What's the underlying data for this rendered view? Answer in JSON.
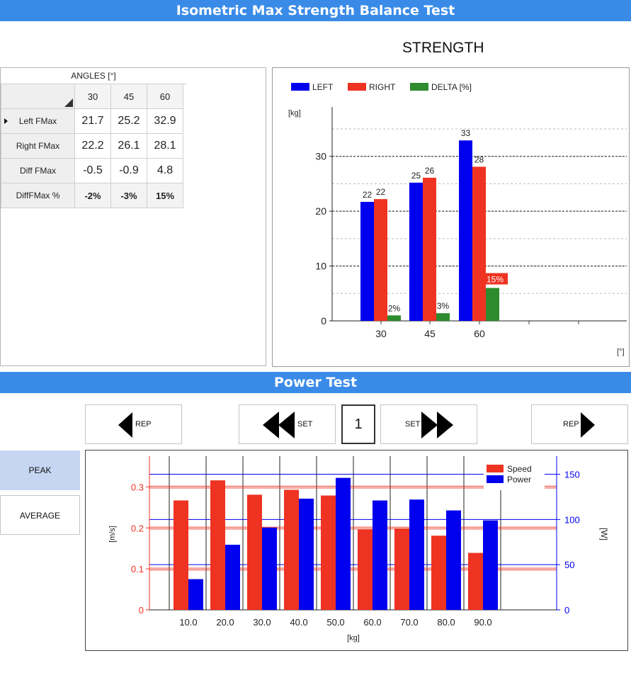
{
  "header": {
    "title": "Isometric Max Strength Balance Test"
  },
  "strength": {
    "heading": "STRENGTH",
    "table": {
      "group_header": "ANGLES [°]",
      "columns": [
        "30",
        "45",
        "60"
      ],
      "rows": [
        {
          "label": "Left FMax",
          "values": [
            "21.7",
            "25.2",
            "32.9"
          ]
        },
        {
          "label": "Right FMax",
          "values": [
            "22.2",
            "26.1",
            "28.1"
          ]
        },
        {
          "label": "Diff FMax",
          "values": [
            "-0.5",
            "-0.9",
            "4.8"
          ]
        },
        {
          "label": "DiffFMax %",
          "values": [
            "-2%",
            "-3%",
            "15%"
          ]
        }
      ]
    }
  },
  "power": {
    "title": "Power Test",
    "nav": {
      "prev_rep": "REP",
      "prev_set": "SET",
      "set_number": "1",
      "next_set": "SET",
      "next_rep": "REP"
    },
    "modes": {
      "peak": "PEAK",
      "average": "AVERAGE"
    }
  },
  "chart_data": [
    {
      "type": "bar",
      "categories": [
        "30",
        "45",
        "60"
      ],
      "series": [
        {
          "name": "LEFT",
          "color": "#0000ee",
          "values": [
            21.7,
            25.2,
            32.9
          ],
          "labels": [
            "22",
            "25",
            "33"
          ]
        },
        {
          "name": "RIGHT",
          "color": "#ee3322",
          "values": [
            22.2,
            26.1,
            28.1
          ],
          "labels": [
            "22",
            "26",
            "28"
          ]
        },
        {
          "name": "DELTA [%]",
          "color": "#2e8b2e",
          "values": [
            1,
            1.4,
            6
          ],
          "labels": [
            "2%",
            "3%",
            "15%"
          ]
        }
      ],
      "ylabel": "[kg]",
      "xlabel": "[°]",
      "ylim": [
        0,
        39
      ],
      "yticks": [
        0,
        10,
        20,
        30
      ],
      "legend": "top-left",
      "grid": true
    },
    {
      "type": "bar",
      "categories": [
        "10.0",
        "20.0",
        "30.0",
        "40.0",
        "50.0",
        "60.0",
        "70.0",
        "80.0",
        "90.0"
      ],
      "series": [
        {
          "name": "Speed",
          "color": "#ee3322",
          "axis": "left",
          "values": [
            0.267,
            0.316,
            0.281,
            0.293,
            0.279,
            0.196,
            0.199,
            0.181,
            0.139
          ]
        },
        {
          "name": "Power",
          "color": "#0000ee",
          "axis": "right",
          "values": [
            34,
            72,
            91,
            123,
            146,
            121,
            122,
            110,
            99
          ]
        }
      ],
      "xlabel": "[kg]",
      "ylabel": "[m/s]",
      "y2label": "[W]",
      "ylim": [
        0,
        0.375
      ],
      "y2lim": [
        0,
        170
      ],
      "yticks": [
        "0",
        "0.1",
        "0.2",
        "0.3"
      ],
      "y2ticks": [
        "0",
        "50",
        "100",
        "150"
      ],
      "legend": "top-right",
      "grid": true
    }
  ]
}
